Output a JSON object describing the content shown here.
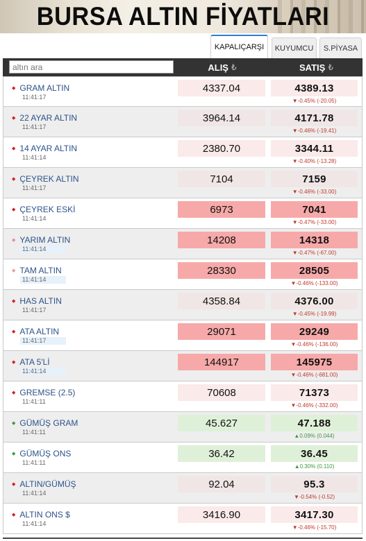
{
  "banner": {
    "title": "BURSA ALTIN FİYATLARI"
  },
  "tabs": [
    {
      "label": "KAPALIÇARŞI"
    },
    {
      "label": "KUYUMCU"
    },
    {
      "label": "S.PİYASA"
    }
  ],
  "search": {
    "placeholder": "altın ara"
  },
  "columns": {
    "alis": "ALIŞ",
    "satis": "SATIŞ",
    "currency_symbol": "₺"
  },
  "colors": {
    "down_arrow": "#d42020",
    "up_arrow": "#3d9a3d",
    "down_bg_light": "#fbeaea",
    "down_bg_strong": "#f7a9a9",
    "up_bg_light": "#dff0d8",
    "neutral_bg": "#f0e6e6"
  },
  "rows": [
    {
      "name": "GRAM ALTIN",
      "time": "11:41:17",
      "alis": "4337.04",
      "satis": "4389.13",
      "change": "▼-0.45% (-20.05)",
      "dir": "down"
    },
    {
      "name": "22 AYAR ALTIN",
      "time": "11:41:17",
      "alis": "3964.14",
      "satis": "4171.78",
      "change": "▼-0.46% (-19.41)",
      "dir": "down"
    },
    {
      "name": "14 AYAR ALTIN",
      "time": "11:41:14",
      "alis": "2380.70",
      "satis": "3344.11",
      "change": "▼-0.40% (-13.28)",
      "dir": "down"
    },
    {
      "name": "ÇEYREK ALTIN",
      "time": "11:41:17",
      "alis": "7104",
      "satis": "7159",
      "change": "▼-0.46% (-33.00)",
      "dir": "down"
    },
    {
      "name": "ÇEYREK ESKİ",
      "time": "11:41:14",
      "alis": "6973",
      "satis": "7041",
      "change": "▼-0.47% (-33.00)",
      "dir": "down"
    },
    {
      "name": "YARIM ALTIN",
      "time": "11:41:14",
      "alis": "14208",
      "satis": "14318",
      "change": "▼-0.47% (-67.00)",
      "dir": "down"
    },
    {
      "name": "TAM ALTIN",
      "time": "11:41:14",
      "alis": "28330",
      "satis": "28505",
      "change": "▼-0.46% (-133.00)",
      "dir": "down"
    },
    {
      "name": "HAS ALTIN",
      "time": "11:41:17",
      "alis": "4358.84",
      "satis": "4376.00",
      "change": "▼-0.45% (-19.99)",
      "dir": "down"
    },
    {
      "name": "ATA ALTIN",
      "time": "11:41:17",
      "alis": "29071",
      "satis": "29249",
      "change": "▼-0.46% (-136.00)",
      "dir": "down"
    },
    {
      "name": "ATA 5'Lİ",
      "time": "11:41:14",
      "alis": "144917",
      "satis": "145975",
      "change": "▼-0.46% (-681.00)",
      "dir": "down"
    },
    {
      "name": "GREMSE (2.5)",
      "time": "11:41:11",
      "alis": "70608",
      "satis": "71373",
      "change": "▼-0.46% (-332.00)",
      "dir": "down"
    },
    {
      "name": "GÜMÜŞ GRAM",
      "time": "11:41:11",
      "alis": "45.627",
      "satis": "47.188",
      "change": "▲0.09% (0.044)",
      "dir": "up"
    },
    {
      "name": "GÜMÜŞ ONS",
      "time": "11:41:11",
      "alis": "36.42",
      "satis": "36.45",
      "change": "▲0.30% (0.110)",
      "dir": "up"
    },
    {
      "name": "ALTIN/GÜMÜŞ",
      "time": "11:41:14",
      "alis": "92.04",
      "satis": "95.3",
      "change": "▼-0.54% (-0.52)",
      "dir": "down"
    },
    {
      "name": "ALTIN ONS $",
      "time": "11:41:14",
      "alis": "3416.90",
      "satis": "3417.30",
      "change": "▼-0.46% (-15.70)",
      "dir": "down"
    }
  ]
}
